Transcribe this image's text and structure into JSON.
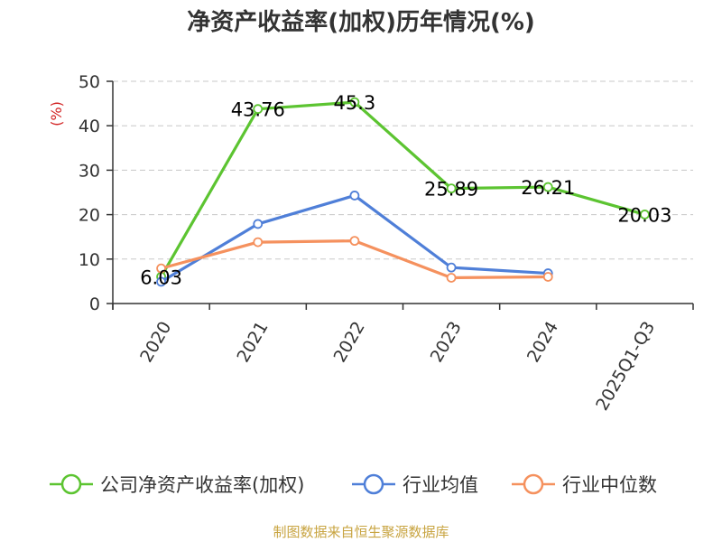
{
  "chart_data": {
    "type": "line",
    "title": "净资产收益率(加权)历年情况(%)",
    "ylabel": "(%)",
    "xlabel": "",
    "ylim": [
      0,
      50
    ],
    "yticks": [
      0,
      10,
      20,
      30,
      40,
      50
    ],
    "categories": [
      "2020",
      "2021",
      "2022",
      "2023",
      "2024",
      "2025Q1-Q3"
    ],
    "grid": true,
    "legend_position": "bottom",
    "series": [
      {
        "name": "公司净资产收益率(加权)",
        "color": "#5cc431",
        "values": [
          6.03,
          43.76,
          45.3,
          25.89,
          26.21,
          20.03
        ],
        "labels": [
          "6.03",
          "43.76",
          "45.3",
          "25.89",
          "26.21",
          "20.03"
        ]
      },
      {
        "name": "行业均值",
        "color": "#4f7fd8",
        "values": [
          4.9,
          17.9,
          24.3,
          8.1,
          6.8,
          null
        ]
      },
      {
        "name": "行业中位数",
        "color": "#f5915e",
        "values": [
          7.9,
          13.8,
          14.1,
          5.8,
          6.0,
          null
        ]
      }
    ]
  },
  "source_text": "制图数据来自恒生聚源数据库",
  "source_color": "#c8a441"
}
